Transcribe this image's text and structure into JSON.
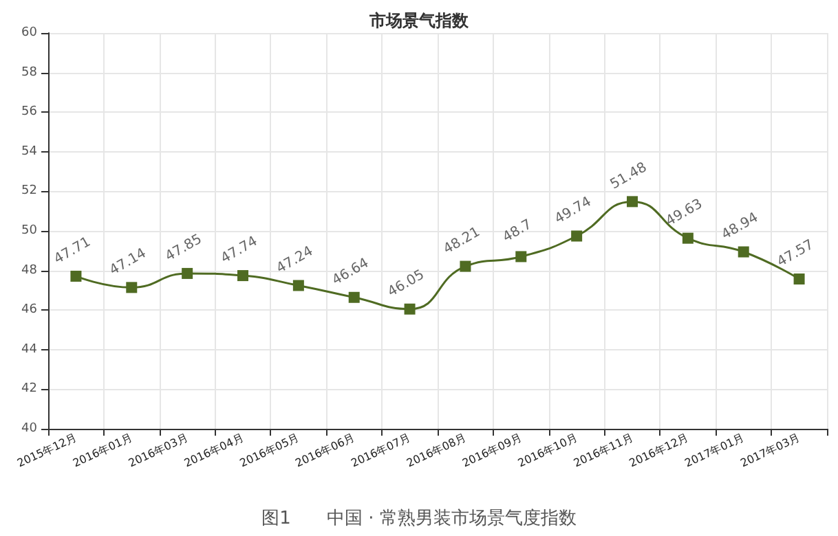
{
  "chart_data": {
    "type": "line",
    "title": "市场景气指数",
    "categories": [
      "2015年12月",
      "2016年01月",
      "2016年03月",
      "2016年04月",
      "2016年05月",
      "2016年06月",
      "2016年07月",
      "2016年08月",
      "2016年09月",
      "2016年10月",
      "2016年11月",
      "2016年12月",
      "2017年01月",
      "2017年03月"
    ],
    "series": [
      {
        "color": "#4f6b22",
        "values": [
          47.71,
          47.14,
          47.85,
          47.74,
          47.24,
          46.64,
          46.05,
          48.21,
          48.7,
          49.74,
          51.48,
          49.63,
          48.94,
          47.57
        ]
      }
    ],
    "ylim": [
      40,
      60
    ],
    "yticks": [
      40,
      42,
      44,
      46,
      48,
      50,
      52,
      54,
      56,
      58,
      60
    ],
    "grid": true,
    "marker": "square",
    "data_labels": true,
    "annotations": [
      "图1　　中国 · 常熟男装市场景气度指数"
    ]
  }
}
